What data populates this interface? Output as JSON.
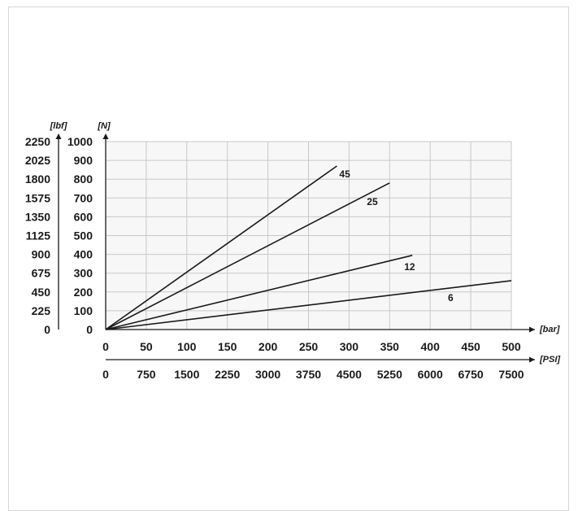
{
  "chart_data": {
    "type": "line",
    "x": {
      "unit": "[bar]",
      "range": [
        0,
        500
      ],
      "ticks": [
        "0",
        "50",
        "100",
        "150",
        "200",
        "250",
        "300",
        "350",
        "400",
        "450",
        "500"
      ]
    },
    "x2": {
      "unit": "[PSI]",
      "ticks": [
        "0",
        "750",
        "1500",
        "2250",
        "3000",
        "3750",
        "4500",
        "5250",
        "6000",
        "6750",
        "7500"
      ]
    },
    "y": {
      "unit": "[N]",
      "range": [
        0,
        1000
      ],
      "ticks": [
        "0",
        "100",
        "200",
        "300",
        "400",
        "500",
        "600",
        "700",
        "800",
        "900",
        "1000"
      ]
    },
    "y2": {
      "unit": "[lbf]",
      "ticks": [
        "0",
        "225",
        "450",
        "675",
        "900",
        "1125",
        "1350",
        "1575",
        "1800",
        "2025",
        "2250"
      ]
    },
    "grid": true,
    "series": [
      {
        "name": "45",
        "points": [
          [
            0,
            0
          ],
          [
            285,
            870
          ]
        ]
      },
      {
        "name": "25",
        "points": [
          [
            0,
            0
          ],
          [
            350,
            780
          ]
        ]
      },
      {
        "name": "12",
        "points": [
          [
            0,
            0
          ],
          [
            378,
            395
          ]
        ]
      },
      {
        "name": "6",
        "points": [
          [
            0,
            0
          ],
          [
            500,
            260
          ]
        ]
      }
    ]
  },
  "colors": {
    "line": "#1a1a1a",
    "grid": "#c8c8c8",
    "plot_bg": "#f7f7f7"
  }
}
